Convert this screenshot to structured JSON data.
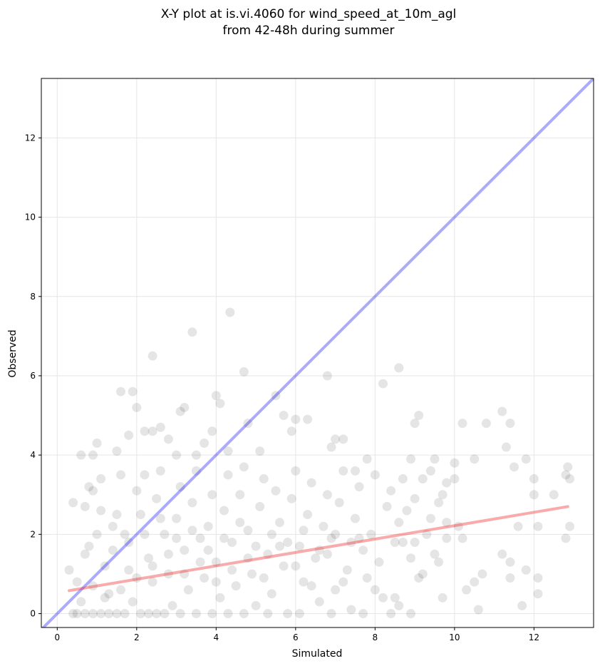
{
  "chart_data": {
    "type": "scatter",
    "title_lines": [
      "X-Y plot at is.vi.4060 for wind_speed_at_10m_agl",
      "from 42-48h during summer"
    ],
    "xlabel": "Simulated",
    "ylabel": "Observed",
    "xlim": [
      -0.4,
      13.5
    ],
    "ylim": [
      -0.35,
      13.5
    ],
    "xticks": [
      0,
      2,
      4,
      6,
      8,
      10,
      12
    ],
    "yticks": [
      0,
      2,
      4,
      6,
      8,
      10,
      12
    ],
    "grid": true,
    "colors": {
      "points": "#000000",
      "identity_line": "#0000ee",
      "fit_line": "#ee2222"
    },
    "identity_line": {
      "x": [
        -0.4,
        13.5
      ],
      "y": [
        -0.4,
        13.5
      ]
    },
    "fit_line": {
      "x": [
        0.3,
        12.85
      ],
      "y": [
        0.58,
        2.7
      ]
    },
    "points": [
      [
        0.6,
        4.0
      ],
      [
        0.9,
        4.0
      ],
      [
        1.0,
        4.3
      ],
      [
        0.7,
        2.7
      ],
      [
        0.4,
        2.8
      ],
      [
        1.1,
        3.4
      ],
      [
        0.9,
        3.1
      ],
      [
        0.8,
        3.2
      ],
      [
        1.5,
        4.1
      ],
      [
        1.6,
        5.6
      ],
      [
        1.9,
        5.6
      ],
      [
        2.0,
        5.2
      ],
      [
        1.8,
        4.5
      ],
      [
        2.2,
        4.6
      ],
      [
        2.4,
        4.6
      ],
      [
        2.4,
        6.5
      ],
      [
        2.6,
        4.7
      ],
      [
        2.8,
        4.4
      ],
      [
        3.0,
        4.0
      ],
      [
        3.1,
        5.1
      ],
      [
        3.2,
        5.2
      ],
      [
        3.4,
        7.1
      ],
      [
        3.5,
        4.0
      ],
      [
        3.7,
        4.3
      ],
      [
        3.9,
        4.6
      ],
      [
        4.0,
        5.5
      ],
      [
        4.1,
        5.3
      ],
      [
        4.35,
        7.6
      ],
      [
        4.3,
        4.1
      ],
      [
        4.7,
        6.1
      ],
      [
        4.8,
        4.8
      ],
      [
        5.1,
        4.1
      ],
      [
        5.5,
        5.5
      ],
      [
        5.7,
        5.0
      ],
      [
        5.9,
        4.6
      ],
      [
        6.0,
        4.9
      ],
      [
        6.3,
        4.9
      ],
      [
        6.8,
        6.0
      ],
      [
        6.9,
        4.2
      ],
      [
        7.0,
        4.4
      ],
      [
        7.2,
        4.4
      ],
      [
        7.5,
        3.6
      ],
      [
        7.8,
        3.9
      ],
      [
        8.2,
        5.8
      ],
      [
        8.6,
        6.2
      ],
      [
        8.9,
        3.9
      ],
      [
        9.0,
        4.8
      ],
      [
        9.1,
        5.0
      ],
      [
        9.5,
        3.9
      ],
      [
        9.8,
        3.3
      ],
      [
        10.2,
        4.8
      ],
      [
        10.5,
        3.9
      ],
      [
        10.8,
        4.8
      ],
      [
        11.2,
        5.1
      ],
      [
        11.4,
        4.8
      ],
      [
        11.3,
        4.2
      ],
      [
        11.5,
        3.7
      ],
      [
        11.8,
        3.9
      ],
      [
        12.0,
        3.4
      ],
      [
        12.5,
        3.0
      ],
      [
        12.8,
        3.5
      ],
      [
        12.85,
        3.7
      ],
      [
        12.9,
        3.4
      ],
      [
        12.8,
        1.9
      ],
      [
        12.9,
        2.2
      ],
      [
        12.1,
        2.2
      ],
      [
        12.0,
        3.0
      ],
      [
        11.6,
        2.2
      ],
      [
        12.1,
        0.9
      ],
      [
        12.1,
        0.5
      ],
      [
        11.8,
        1.1
      ],
      [
        11.7,
        0.2
      ],
      [
        11.4,
        0.9
      ],
      [
        11.2,
        1.5
      ],
      [
        11.4,
        1.3
      ],
      [
        10.7,
        1.0
      ],
      [
        10.5,
        0.8
      ],
      [
        10.6,
        0.1
      ],
      [
        10.3,
        0.6
      ],
      [
        10.2,
        1.9
      ],
      [
        10.0,
        3.4
      ],
      [
        10.0,
        3.8
      ],
      [
        9.8,
        2.3
      ],
      [
        9.7,
        3.0
      ],
      [
        9.6,
        1.3
      ],
      [
        9.7,
        0.4
      ],
      [
        9.5,
        1.5
      ],
      [
        9.4,
        2.4
      ],
      [
        9.2,
        1.0
      ],
      [
        9.1,
        0.9
      ],
      [
        9.0,
        1.8
      ],
      [
        8.9,
        0.0
      ],
      [
        8.7,
        1.8
      ],
      [
        8.6,
        0.2
      ],
      [
        8.5,
        0.4
      ],
      [
        8.4,
        0.0
      ],
      [
        0.3,
        1.1
      ],
      [
        0.5,
        0.8
      ],
      [
        0.6,
        0.3
      ],
      [
        0.4,
        0.0
      ],
      [
        0.7,
        1.5
      ],
      [
        0.8,
        1.7
      ],
      [
        0.9,
        0.7
      ],
      [
        1.0,
        2.0
      ],
      [
        1.1,
        2.6
      ],
      [
        1.2,
        1.2
      ],
      [
        1.3,
        0.5
      ],
      [
        1.4,
        1.6
      ],
      [
        1.5,
        2.5
      ],
      [
        1.6,
        3.5
      ],
      [
        1.7,
        2.0
      ],
      [
        1.8,
        1.1
      ],
      [
        1.9,
        0.3
      ],
      [
        2.0,
        3.1
      ],
      [
        2.1,
        2.5
      ],
      [
        2.2,
        3.5
      ],
      [
        2.3,
        1.4
      ],
      [
        2.4,
        0.8
      ],
      [
        2.5,
        2.9
      ],
      [
        2.6,
        3.6
      ],
      [
        2.7,
        2.0
      ],
      [
        2.8,
        1.0
      ],
      [
        2.9,
        0.2
      ],
      [
        3.0,
        2.4
      ],
      [
        3.1,
        3.2
      ],
      [
        3.2,
        1.6
      ],
      [
        3.3,
        0.6
      ],
      [
        3.4,
        2.8
      ],
      [
        3.5,
        3.6
      ],
      [
        3.6,
        1.9
      ],
      [
        3.7,
        0.9
      ],
      [
        3.8,
        2.2
      ],
      [
        3.9,
        3.0
      ],
      [
        4.0,
        1.3
      ],
      [
        4.1,
        0.4
      ],
      [
        4.2,
        2.6
      ],
      [
        4.3,
        3.5
      ],
      [
        4.4,
        1.8
      ],
      [
        4.5,
        0.7
      ],
      [
        4.6,
        3.0
      ],
      [
        4.7,
        3.7
      ],
      [
        4.8,
        2.1
      ],
      [
        4.9,
        1.0
      ],
      [
        5.0,
        0.2
      ],
      [
        5.1,
        2.7
      ],
      [
        5.2,
        3.4
      ],
      [
        5.3,
        1.5
      ],
      [
        5.4,
        0.5
      ],
      [
        5.5,
        3.1
      ],
      [
        5.6,
        2.3
      ],
      [
        5.7,
        1.2
      ],
      [
        5.8,
        0.0
      ],
      [
        5.9,
        2.9
      ],
      [
        6.0,
        3.6
      ],
      [
        6.1,
        1.7
      ],
      [
        6.2,
        0.8
      ],
      [
        6.3,
        2.5
      ],
      [
        6.4,
        3.3
      ],
      [
        6.5,
        1.4
      ],
      [
        6.6,
        0.3
      ],
      [
        6.7,
        2.2
      ],
      [
        6.8,
        3.0
      ],
      [
        6.9,
        1.9
      ],
      [
        7.0,
        0.6
      ],
      [
        7.1,
        2.8
      ],
      [
        7.2,
        3.6
      ],
      [
        7.3,
        1.1
      ],
      [
        7.4,
        0.1
      ],
      [
        7.5,
        2.4
      ],
      [
        7.6,
        3.2
      ],
      [
        7.7,
        1.6
      ],
      [
        7.8,
        0.9
      ],
      [
        7.9,
        2.0
      ],
      [
        8.0,
        3.5
      ],
      [
        8.1,
        1.3
      ],
      [
        8.2,
        0.4
      ],
      [
        8.3,
        2.7
      ],
      [
        8.4,
        3.1
      ],
      [
        8.5,
        1.8
      ],
      [
        8.6,
        2.3
      ],
      [
        8.7,
        3.4
      ],
      [
        8.8,
        2.6
      ],
      [
        8.9,
        1.4
      ],
      [
        9.0,
        2.9
      ],
      [
        9.2,
        3.4
      ],
      [
        9.3,
        2.0
      ],
      [
        9.4,
        3.6
      ],
      [
        9.6,
        2.8
      ],
      [
        9.8,
        1.9
      ],
      [
        10.1,
        2.2
      ],
      [
        0.5,
        0.0
      ],
      [
        0.7,
        0.0
      ],
      [
        0.9,
        0.0
      ],
      [
        1.1,
        0.0
      ],
      [
        1.3,
        0.0
      ],
      [
        1.5,
        0.0
      ],
      [
        1.7,
        0.0
      ],
      [
        2.1,
        0.0
      ],
      [
        2.3,
        0.0
      ],
      [
        2.5,
        0.0
      ],
      [
        2.7,
        0.0
      ],
      [
        3.1,
        0.0
      ],
      [
        3.5,
        0.0
      ],
      [
        3.9,
        0.0
      ],
      [
        4.3,
        0.0
      ],
      [
        4.7,
        0.0
      ],
      [
        5.3,
        0.0
      ],
      [
        6.1,
        0.0
      ],
      [
        6.9,
        0.0
      ],
      [
        7.7,
        0.0
      ],
      [
        1.2,
        0.4
      ],
      [
        1.6,
        0.6
      ],
      [
        2.0,
        0.9
      ],
      [
        2.4,
        1.2
      ],
      [
        2.8,
        1.5
      ],
      [
        3.2,
        1.0
      ],
      [
        3.6,
        1.3
      ],
      [
        4.0,
        0.8
      ],
      [
        4.4,
        1.1
      ],
      [
        4.8,
        1.4
      ],
      [
        5.2,
        0.9
      ],
      [
        5.6,
        1.7
      ],
      [
        6.0,
        1.2
      ],
      [
        6.4,
        0.7
      ],
      [
        6.8,
        1.5
      ],
      [
        7.2,
        0.8
      ],
      [
        7.6,
        1.9
      ],
      [
        8.0,
        0.6
      ],
      [
        1.4,
        2.2
      ],
      [
        1.8,
        1.8
      ],
      [
        2.2,
        2.0
      ],
      [
        2.6,
        2.4
      ],
      [
        3.0,
        1.9
      ],
      [
        3.4,
        2.1
      ],
      [
        3.8,
        1.6
      ],
      [
        4.2,
        1.9
      ],
      [
        4.6,
        2.3
      ],
      [
        5.0,
        1.7
      ],
      [
        5.4,
        2.0
      ],
      [
        5.8,
        1.8
      ],
      [
        6.2,
        2.1
      ],
      [
        6.6,
        1.6
      ],
      [
        7.0,
        2.0
      ],
      [
        7.4,
        1.8
      ]
    ]
  }
}
